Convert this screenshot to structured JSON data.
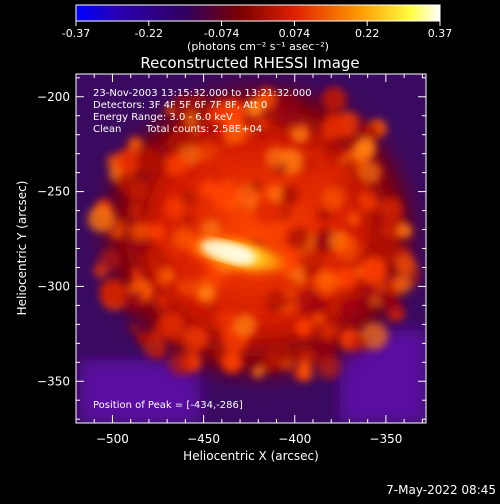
{
  "colorbar": {
    "min_label": "-0.37",
    "tick_labels": [
      "-0.37",
      "-0.22",
      "-0.074",
      "0.074",
      "0.22",
      "0.37"
    ],
    "unit_label": "(photons cm⁻² s⁻¹ asec⁻²)",
    "colors": [
      "#0000ff",
      "#2a00b0",
      "#300060",
      "#7a0000",
      "#e02000",
      "#ff9a00",
      "#ffff40",
      "#ffffff"
    ]
  },
  "chart_data": {
    "type": "heatmap",
    "title": "Reconstructed RHESSI Image",
    "xlabel": "Heliocentric X (arcsec)",
    "ylabel": "Heliocentric Y (arcsec)",
    "xlim": [
      -520,
      -328
    ],
    "ylim": [
      -372,
      -188
    ],
    "xticks": [
      -500,
      -450,
      -400,
      -350
    ],
    "yticks": [
      -350,
      -300,
      -250,
      -200
    ],
    "xtick_labels": [
      "−500",
      "−450",
      "−400",
      "−350"
    ],
    "ytick_labels": [
      "−350",
      "−300",
      "−250",
      "−200"
    ],
    "peak": [
      -434,
      -286
    ],
    "annotations": {
      "time": "23-Nov-2003 13:15:32.000 to 13:21:32.000",
      "detectors": "Detectors: 3F 4F 5F 6F 7F 8F, Att 0",
      "energy": "Energy Range: 3.0 - 6.0 keV",
      "clean": "Clean",
      "counts": "Total counts: 2.58E+04",
      "peak_text": "Position of Peak = [-434,-286]"
    }
  },
  "footer": {
    "date": "7-May-2022 08:45"
  }
}
